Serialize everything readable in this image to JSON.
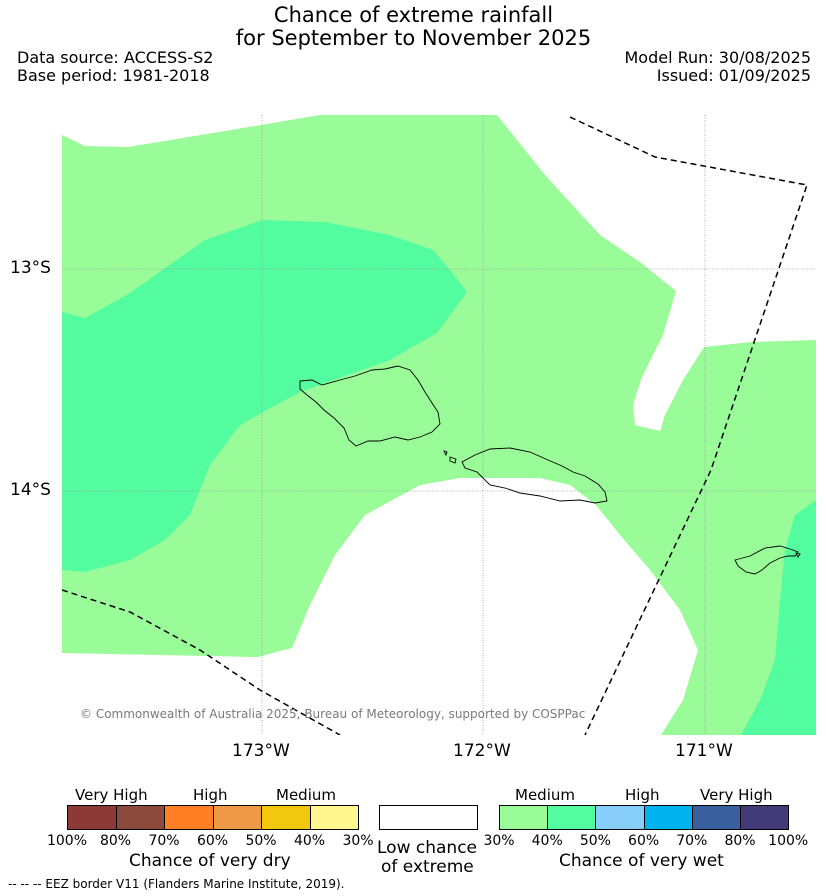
{
  "header": {
    "title_line1": "Chance of extreme rainfall",
    "title_line2": "for September to November 2025",
    "data_source": "Data source: ACCESS-S2",
    "base_period": "Base period: 1981-2018",
    "model_run": "Model Run: 30/08/2025",
    "issued": "Issued: 01/09/2025"
  },
  "map": {
    "lat_labels": [
      "13°S",
      "14°S"
    ],
    "lon_labels": [
      "173°W",
      "172°W",
      "171°W"
    ],
    "copyright": "© Commonwealth of Australia 2025, Bureau of Meteorology, supported by COSPPac"
  },
  "legend": {
    "dry": {
      "categories": [
        "Very High",
        "High",
        "Medium"
      ],
      "ticks": [
        "100%",
        "80%",
        "70%",
        "60%",
        "50%",
        "40%",
        "30%"
      ],
      "caption": "Chance of very dry",
      "colors": [
        "#8b3a35",
        "#8b4a3c",
        "#ff7f24",
        "#ee9a49",
        "#f2c80f",
        "#fff68f"
      ]
    },
    "low": {
      "caption_line1": "Low chance",
      "caption_line2": "of extreme",
      "color": "#ffffff"
    },
    "wet": {
      "categories": [
        "Medium",
        "High",
        "Very High"
      ],
      "ticks": [
        "30%",
        "40%",
        "50%",
        "60%",
        "70%",
        "80%",
        "100%"
      ],
      "caption": "Chance of very wet",
      "colors": [
        "#9afc98",
        "#54fca0",
        "#87cefa",
        "#00b2ee",
        "#3a5f9e",
        "#433a78"
      ]
    }
  },
  "footer": {
    "eez_note": "--  --  -- EEZ border V11 (Flanders Marine Institute, 2019)."
  }
}
